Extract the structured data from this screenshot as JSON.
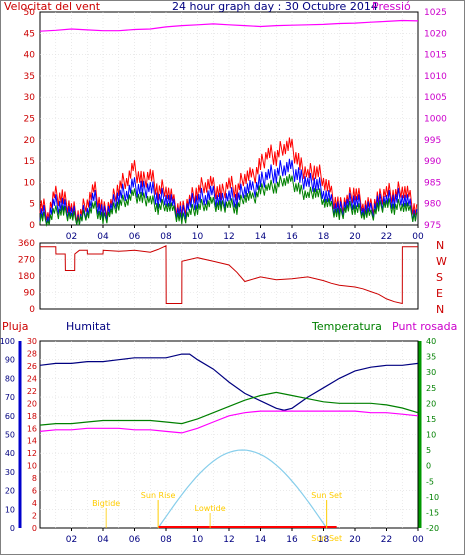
{
  "chart_data": [
    {
      "type": "line",
      "title": "24 hour graph day : 30 Octubre 2014",
      "left_label": "Velocitat del vent",
      "right_label": "Pressió",
      "x_ticks": [
        "02",
        "04",
        "06",
        "08",
        "10",
        "12",
        "14",
        "16",
        "18",
        "20",
        "22",
        "00"
      ],
      "left_ticks": [
        "0",
        "5",
        "10",
        "15",
        "20",
        "25",
        "30",
        "35",
        "40",
        "45",
        "50"
      ],
      "right_ticks": [
        "975",
        "980",
        "985",
        "990",
        "995",
        "1000",
        "1005",
        "1010",
        "1015",
        "1020",
        "1025"
      ],
      "ylim_left": [
        0,
        50
      ],
      "ylim_right": [
        975,
        1025
      ],
      "colors": {
        "gust": "#ff0000",
        "avg": "#0000ff",
        "speed": "#008000",
        "pressure": "#ff00ff"
      },
      "series": [
        {
          "key": "gust",
          "x": [
            0,
            0.5,
            1,
            1.5,
            2,
            2.5,
            3,
            3.5,
            4,
            4.5,
            5,
            5.5,
            6,
            6.5,
            7,
            7.5,
            8,
            8.5,
            9,
            9.5,
            10,
            10.5,
            11,
            11.5,
            12,
            12.5,
            13,
            13.5,
            14,
            14.5,
            15,
            15.5,
            16,
            16.5,
            17,
            17.5,
            18,
            18.5,
            19,
            19.5,
            20,
            20.5,
            21,
            21.5,
            22,
            22.5,
            23,
            23.5,
            24
          ],
          "y": [
            5,
            3,
            7,
            6,
            4,
            2,
            6,
            8,
            3,
            5,
            9,
            11,
            13,
            10,
            12,
            8,
            9,
            5,
            3,
            6,
            8,
            10,
            9,
            7,
            10,
            8,
            12,
            11,
            14,
            17,
            16,
            19,
            18,
            14,
            12,
            13,
            11,
            7,
            4,
            6,
            8,
            5,
            4,
            6,
            8,
            7,
            9,
            6,
            2
          ]
        },
        {
          "key": "avg",
          "x": [
            0,
            0.5,
            1,
            1.5,
            2,
            2.5,
            3,
            3.5,
            4,
            4.5,
            5,
            5.5,
            6,
            6.5,
            7,
            7.5,
            8,
            8.5,
            9,
            9.5,
            10,
            10.5,
            11,
            11.5,
            12,
            12.5,
            13,
            13.5,
            14,
            14.5,
            15,
            15.5,
            16,
            16.5,
            17,
            17.5,
            18,
            18.5,
            19,
            19.5,
            20,
            20.5,
            21,
            21.5,
            22,
            22.5,
            23,
            23.5,
            24
          ],
          "y": [
            3,
            2,
            5,
            4,
            3,
            1,
            4,
            6,
            2,
            4,
            7,
            8,
            9,
            8,
            9,
            6,
            7,
            4,
            2,
            5,
            6,
            7,
            7,
            5,
            7,
            6,
            9,
            8,
            10,
            12,
            12,
            14,
            13,
            11,
            10,
            10,
            8,
            5,
            3,
            5,
            6,
            4,
            3,
            5,
            6,
            6,
            7,
            4,
            1
          ]
        },
        {
          "key": "speed",
          "x": [
            0,
            0.5,
            1,
            1.5,
            2,
            2.5,
            3,
            3.5,
            4,
            4.5,
            5,
            5.5,
            6,
            6.5,
            7,
            7.5,
            8,
            8.5,
            9,
            9.5,
            10,
            10.5,
            11,
            11.5,
            12,
            12.5,
            13,
            13.5,
            14,
            14.5,
            15,
            15.5,
            16,
            16.5,
            17,
            17.5,
            18,
            18.5,
            19,
            19.5,
            20,
            20.5,
            21,
            21.5,
            22,
            22.5,
            23,
            23.5,
            24
          ],
          "y": [
            2,
            1,
            3,
            3,
            2,
            1,
            3,
            4,
            1,
            3,
            5,
            6,
            7,
            6,
            6,
            4,
            5,
            3,
            1,
            3,
            4,
            5,
            5,
            4,
            5,
            4,
            7,
            6,
            8,
            9,
            9,
            11,
            10,
            8,
            7,
            8,
            6,
            4,
            2,
            4,
            4,
            3,
            2,
            4,
            5,
            4,
            5,
            3,
            1
          ]
        },
        {
          "key": "pressure",
          "x": [
            0,
            1,
            2,
            3,
            4,
            5,
            6,
            7,
            8,
            9,
            10,
            11,
            12,
            13,
            14,
            15,
            16,
            17,
            18,
            19,
            20,
            21,
            22,
            23,
            24
          ],
          "y": [
            1020.5,
            1020.7,
            1021,
            1020.8,
            1020.6,
            1020.6,
            1020.9,
            1021,
            1021.5,
            1021.8,
            1022,
            1022.2,
            1022,
            1021.8,
            1021.6,
            1021.8,
            1021.9,
            1022,
            1022.1,
            1022.3,
            1022.4,
            1022.6,
            1022.8,
            1023,
            1022.9
          ]
        }
      ]
    },
    {
      "type": "line",
      "left_ticks": [
        "0",
        "90",
        "180",
        "270",
        "360"
      ],
      "right_ticks": [
        "N",
        "W",
        "S",
        "E",
        "N"
      ],
      "x_ticks": [
        "02",
        "04",
        "06",
        "08",
        "10",
        "12",
        "14",
        "16",
        "18",
        "20",
        "22",
        "00"
      ],
      "ylim": [
        0,
        360
      ],
      "color": "#cc0000",
      "series": [
        {
          "key": "direction",
          "x": [
            0,
            1,
            1.01,
            1.6,
            1.61,
            2.2,
            2.21,
            2.5,
            3,
            3.01,
            4,
            4.01,
            5,
            6,
            7,
            7.5,
            8,
            8.01,
            9,
            9.01,
            10,
            11,
            12,
            12.5,
            13,
            14,
            15,
            16,
            17,
            18,
            18.5,
            19,
            19.5,
            20,
            20.5,
            21,
            21.5,
            22,
            22.5,
            23,
            23.01,
            24
          ],
          "y": [
            340,
            340,
            300,
            300,
            210,
            210,
            300,
            320,
            320,
            300,
            300,
            320,
            315,
            320,
            310,
            325,
            345,
            30,
            30,
            260,
            280,
            260,
            240,
            200,
            150,
            175,
            160,
            165,
            175,
            155,
            140,
            130,
            125,
            120,
            110,
            95,
            80,
            55,
            40,
            30,
            340,
            340
          ]
        }
      ]
    },
    {
      "type": "line",
      "left_labels": [
        "Pluja",
        "Humitat"
      ],
      "right_labels": [
        "Temperatura",
        "Punt rosada"
      ],
      "x_ticks": [
        "02",
        "04",
        "06",
        "08",
        "10",
        "12",
        "14",
        "16",
        "18",
        "20",
        "22",
        "00"
      ],
      "humidity_ticks": [
        "0",
        "10",
        "20",
        "30",
        "40",
        "50",
        "60",
        "70",
        "80",
        "90",
        "100"
      ],
      "rain_ticks": [
        "0",
        "2",
        "4",
        "6",
        "8",
        "10",
        "12",
        "14",
        "16",
        "18",
        "20",
        "22",
        "24",
        "26",
        "28",
        "30"
      ],
      "temp_ticks": [
        "-20",
        "-15",
        "-10",
        "-5",
        "0",
        "5",
        "10",
        "15",
        "20",
        "25",
        "30",
        "35",
        "40"
      ],
      "ylim_humidity": [
        0,
        100
      ],
      "ylim_temp": [
        -20,
        40
      ],
      "colors": {
        "humidity": "#000080",
        "temperature": "#008000",
        "dewpoint": "#ff00ff",
        "rain": "#ff0000",
        "solar": "#87ceeb",
        "text": "#ffcc00"
      },
      "series": [
        {
          "key": "humidity",
          "x": [
            0,
            1,
            2,
            3,
            4,
            5,
            6,
            7,
            8,
            9,
            9.5,
            10,
            11,
            12,
            13,
            14,
            15,
            15.5,
            16,
            17,
            18,
            19,
            20,
            21,
            22,
            23,
            24
          ],
          "y": [
            87,
            88,
            88,
            89,
            89,
            90,
            91,
            91,
            91,
            93,
            93,
            90,
            85,
            78,
            72,
            68,
            64,
            63,
            64,
            70,
            75,
            80,
            84,
            86,
            87,
            87,
            88
          ]
        },
        {
          "key": "temperature",
          "x": [
            0,
            1,
            2,
            3,
            4,
            5,
            6,
            7,
            8,
            9,
            10,
            11,
            12,
            13,
            14,
            15,
            16,
            17,
            18,
            19,
            20,
            21,
            22,
            23,
            24
          ],
          "y": [
            13,
            13.5,
            13.5,
            14,
            14.5,
            14.5,
            14.5,
            14.5,
            14,
            13.5,
            15,
            17,
            19,
            21,
            22.5,
            23.5,
            22.5,
            21.5,
            20.5,
            20,
            20,
            20,
            19.5,
            18.5,
            17
          ]
        },
        {
          "key": "dewpoint",
          "x": [
            0,
            1,
            2,
            3,
            4,
            5,
            6,
            7,
            8,
            9,
            10,
            11,
            12,
            13,
            14,
            15,
            16,
            17,
            18,
            19,
            20,
            21,
            22,
            23,
            24
          ],
          "y": [
            11,
            11.5,
            11.5,
            12,
            12,
            12,
            11.5,
            11.5,
            11,
            10.5,
            12,
            14,
            16,
            17,
            17.5,
            17.5,
            17.5,
            17.5,
            17.5,
            17.5,
            17.5,
            17,
            17,
            16.5,
            16
          ]
        }
      ],
      "solar_peak_hour": 12.8,
      "solar_rise_hour": 7.5,
      "solar_set_hour": 18.2,
      "annotations": [
        "Sun Rise",
        "Sun Set",
        "Sun Set",
        "Bigtide",
        "Lowtide"
      ]
    }
  ]
}
